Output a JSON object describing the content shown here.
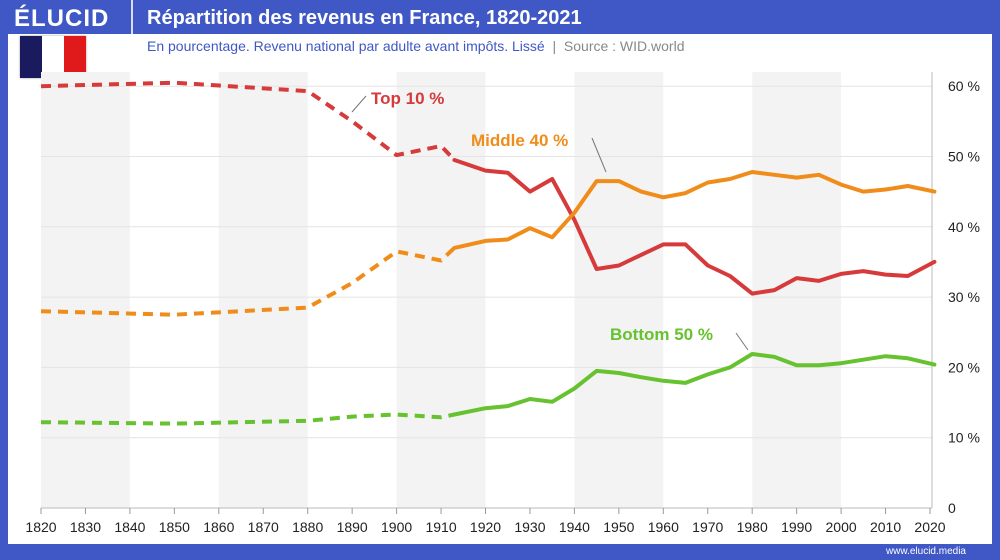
{
  "header": {
    "logo": "ÉLUCID",
    "title": "Répartition des revenus en France, 1820-2021",
    "subtitle": "En pourcentage. Revenu national par adulte avant impôts. Lissé",
    "source": "Source : WID.world",
    "footer": "www.elucid.media"
  },
  "colors": {
    "frame": "#3f58c6",
    "top10": "#d63a3a",
    "middle40": "#f08c1a",
    "bottom50": "#66c22e"
  },
  "chart_data": {
    "type": "line",
    "xlim": [
      1820,
      2021
    ],
    "ylim": [
      0,
      60
    ],
    "x_ticks": [
      "1820",
      "1830",
      "1840",
      "1850",
      "1860",
      "1870",
      "1880",
      "1890",
      "1900",
      "1910",
      "1920",
      "1930",
      "1940",
      "1950",
      "1960",
      "1970",
      "1980",
      "1990",
      "2000",
      "2010",
      "2020"
    ],
    "y_ticks": [
      "0",
      "10 %",
      "20 %",
      "30 %",
      "40 %",
      "50 %",
      "60 %"
    ],
    "dashed_until": 1913,
    "x": [
      1820,
      1850,
      1880,
      1890,
      1900,
      1910,
      1913,
      1920,
      1925,
      1930,
      1935,
      1940,
      1945,
      1950,
      1955,
      1960,
      1965,
      1970,
      1975,
      1980,
      1985,
      1990,
      1995,
      2000,
      2005,
      2010,
      2015,
      2021
    ],
    "series": [
      {
        "name": "Top 10 %",
        "key": "top10",
        "values": [
          60,
          60.5,
          59.3,
          55,
          50.2,
          51.5,
          49.5,
          48,
          47.7,
          45,
          46.8,
          41,
          34,
          34.5,
          36,
          37.5,
          37.5,
          34.5,
          33,
          30.5,
          31,
          32.7,
          32.3,
          33.3,
          33.7,
          33.2,
          33,
          35
        ]
      },
      {
        "name": "Middle 40 %",
        "key": "middle40",
        "values": [
          28,
          27.5,
          28.5,
          32,
          36.5,
          35.2,
          37,
          38,
          38.2,
          39.8,
          38.5,
          42,
          46.5,
          46.5,
          45,
          44.2,
          44.8,
          46.3,
          46.8,
          47.8,
          47.4,
          47,
          47.4,
          46,
          45,
          45.3,
          45.8,
          45
        ]
      },
      {
        "name": "Bottom 50 %",
        "key": "bottom50",
        "values": [
          12.2,
          12,
          12.4,
          13,
          13.3,
          12.9,
          13.3,
          14.2,
          14.5,
          15.5,
          15.1,
          17,
          19.5,
          19.2,
          18.6,
          18.1,
          17.8,
          19,
          20,
          21.9,
          21.5,
          20.3,
          20.3,
          20.6,
          21.1,
          21.6,
          21.3,
          20.4
        ]
      }
    ],
    "shaded_decades": [
      [
        1820,
        1840
      ],
      [
        1860,
        1880
      ],
      [
        1900,
        1920
      ],
      [
        1940,
        1960
      ],
      [
        1980,
        2000
      ]
    ],
    "grid": true
  }
}
